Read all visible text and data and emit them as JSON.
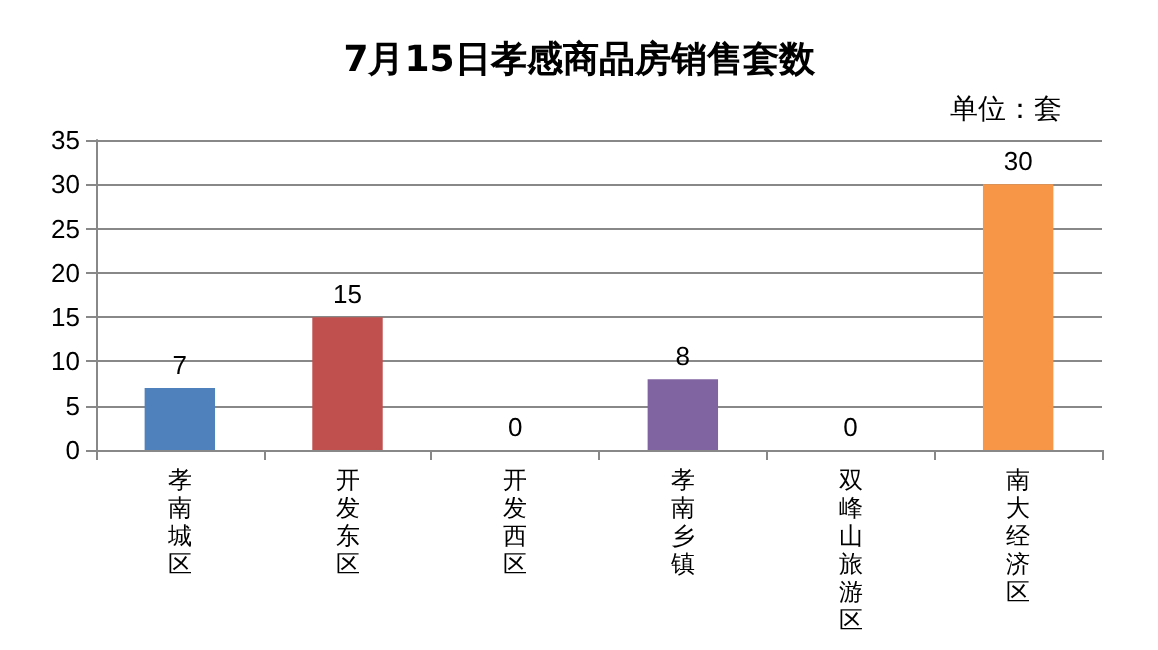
{
  "chart_data": {
    "type": "bar",
    "title": "7月15日孝感商品房销售套数",
    "annotations": [
      "单位：套"
    ],
    "categories": [
      "孝南城区",
      "开发东区",
      "开发西区",
      "孝南乡镇",
      "双峰山旅游区",
      "南大经济区"
    ],
    "values": [
      7,
      15,
      0,
      8,
      0,
      30
    ],
    "colors": [
      "#4f81bd",
      "#c0504d",
      "#9bbb59",
      "#8064a2",
      "#4bacc6",
      "#f79646"
    ],
    "ylim": [
      0,
      35
    ],
    "yticks": [
      0,
      5,
      10,
      15,
      20,
      25,
      30,
      35
    ],
    "grid": "y",
    "data_labels": true
  }
}
